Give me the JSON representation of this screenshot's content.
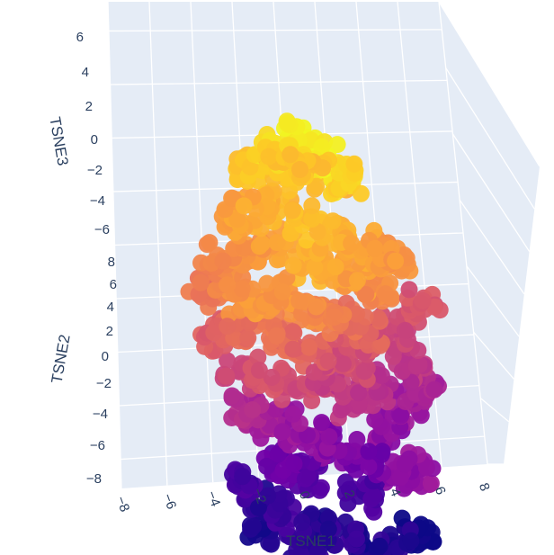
{
  "chart_data": {
    "type": "scatter",
    "dimensions": 3,
    "colorscale": "plasma",
    "colors": {
      "pane": "#e5ecf6",
      "grid": "#ffffff",
      "text": "#2a3f5f",
      "plasma": [
        "#0d0887",
        "#46039f",
        "#7201a8",
        "#9c179e",
        "#bd3786",
        "#d8576b",
        "#ed7953",
        "#fb9f3a",
        "#fdca26",
        "#f0f921"
      ]
    },
    "axes": {
      "x": {
        "title": "TSNE1",
        "range": [
          -8,
          8
        ],
        "ticks": [
          -8,
          -6,
          -4,
          -2,
          0,
          2,
          4,
          6,
          8
        ],
        "tick_labels": [
          "−8",
          "−6",
          "−4",
          "−2",
          "0",
          "2",
          "4",
          "6",
          "8"
        ]
      },
      "y": {
        "title": "TSNE2",
        "range": [
          -8,
          8
        ],
        "ticks": [
          -8,
          -6,
          -4,
          -2,
          0,
          2,
          4,
          6,
          8
        ],
        "tick_labels": [
          "−8",
          "−6",
          "−4",
          "−2",
          "0",
          "2",
          "4",
          "6",
          "8"
        ]
      },
      "z": {
        "title": "TSNE3",
        "range": [
          -7,
          7
        ],
        "ticks": [
          -6,
          -4,
          -2,
          0,
          2,
          4,
          6
        ],
        "tick_labels": [
          "−6",
          "−4",
          "−2",
          "0",
          "2",
          "4",
          "6"
        ]
      }
    },
    "grid": true,
    "legend": "none",
    "clusters": [
      {
        "x": [
          0.5,
          1.8,
          -1.2,
          2.6,
          0.2,
          -2.3,
          1.1,
          3.0,
          -0.6,
          2.0
        ],
        "y": [
          5.6,
          5.2,
          4.8,
          4.9,
          6.2,
          4.3,
          6.8,
          6.0,
          5.6,
          4.3
        ],
        "z": [
          3.7,
          3.0,
          3.2,
          2.5,
          2.2,
          2.9,
          1.6,
          1.7,
          2.4,
          2.8
        ],
        "color": [
          0.98,
          0.97,
          0.93,
          0.94,
          0.9,
          0.88,
          0.86,
          0.9,
          0.87,
          0.84
        ]
      },
      {
        "x": [
          -3.3,
          -2.1,
          -0.8,
          0.6,
          2.0,
          3.4,
          4.6,
          -2.7,
          -1.2,
          0.4,
          1.8,
          3.1,
          4.2,
          -4.0,
          5.2
        ],
        "y": [
          3.4,
          3.6,
          3.5,
          3.2,
          3.0,
          2.8,
          2.7,
          2.1,
          2.3,
          2.0,
          1.8,
          1.6,
          1.3,
          1.7,
          2.4
        ],
        "z": [
          1.2,
          1.5,
          1.8,
          1.3,
          1.0,
          0.8,
          0.5,
          0.6,
          0.9,
          0.4,
          0.2,
          0.0,
          -0.3,
          0.3,
          0.7
        ],
        "color": [
          0.78,
          0.8,
          0.84,
          0.86,
          0.82,
          0.8,
          0.76,
          0.74,
          0.79,
          0.83,
          0.8,
          0.77,
          0.72,
          0.71,
          0.75
        ]
      },
      {
        "x": [
          -5.2,
          -4.4,
          -3.3,
          -2.1,
          -1.0,
          0.3,
          1.6,
          2.8,
          3.9,
          -4.6,
          -3.4,
          -2.2,
          -0.9,
          0.4,
          1.7,
          3.0,
          -3.6,
          -2.0,
          -0.4,
          1.2,
          2.6
        ],
        "y": [
          0.9,
          1.2,
          1.0,
          0.7,
          0.9,
          0.6,
          0.5,
          0.3,
          0.0,
          -0.5,
          -0.2,
          -0.4,
          -0.1,
          -0.3,
          -0.6,
          -0.8,
          -1.6,
          -1.4,
          -1.8,
          -1.5,
          -1.9
        ],
        "z": [
          -0.5,
          -0.3,
          -0.6,
          -0.8,
          -0.4,
          -0.7,
          -1.0,
          -1.1,
          -1.4,
          -1.5,
          -1.6,
          -1.3,
          -1.7,
          -1.9,
          -2.0,
          -2.2,
          -2.5,
          -2.6,
          -2.8,
          -2.7,
          -3.0
        ],
        "color": [
          0.66,
          0.7,
          0.73,
          0.76,
          0.75,
          0.72,
          0.68,
          0.64,
          0.6,
          0.58,
          0.62,
          0.66,
          0.64,
          0.6,
          0.56,
          0.52,
          0.5,
          0.54,
          0.52,
          0.48,
          0.45
        ]
      },
      {
        "x": [
          4.9,
          5.7,
          6.3,
          5.5,
          4.4,
          6.8,
          3.8
        ],
        "y": [
          -0.2,
          -1.2,
          -2.1,
          -2.9,
          -3.6,
          0.8,
          -1.9
        ],
        "z": [
          -1.0,
          -1.7,
          -2.2,
          -2.6,
          -3.1,
          -0.3,
          -2.4
        ],
        "color": [
          0.5,
          0.45,
          0.38,
          0.35,
          0.3,
          0.55,
          0.42
        ]
      },
      {
        "x": [
          -3.3,
          -2.2,
          -0.8,
          0.6,
          1.9,
          3.2,
          -1.5,
          0.0,
          4.6,
          5.8,
          2.7
        ],
        "y": [
          -2.6,
          -3.0,
          -2.8,
          -3.2,
          -3.5,
          -3.8,
          -4.1,
          -4.3,
          -4.6,
          -5.4,
          -5.0
        ],
        "z": [
          -3.4,
          -3.6,
          -3.9,
          -4.0,
          -4.2,
          -4.5,
          -4.7,
          -4.9,
          -4.4,
          -3.9,
          -5.2
        ],
        "color": [
          0.4,
          0.36,
          0.33,
          0.3,
          0.26,
          0.22,
          0.2,
          0.16,
          0.28,
          0.32,
          0.12
        ]
      },
      {
        "x": [
          -3.8,
          -2.6,
          -1.3,
          0.3,
          1.6,
          3.0,
          4.4,
          5.6,
          -2.8,
          -0.6
        ],
        "y": [
          -4.6,
          -5.3,
          -5.8,
          -6.2,
          -6.6,
          -6.9,
          -7.0,
          -7.2,
          -6.4,
          -7.1
        ],
        "z": [
          -5.2,
          -5.6,
          -5.9,
          -6.0,
          -6.1,
          -6.3,
          -5.9,
          -5.5,
          -6.2,
          -6.5
        ],
        "color": [
          0.12,
          0.06,
          0.1,
          0.04,
          0.08,
          0.02,
          0.05,
          0.0,
          0.03,
          0.07
        ]
      }
    ]
  }
}
